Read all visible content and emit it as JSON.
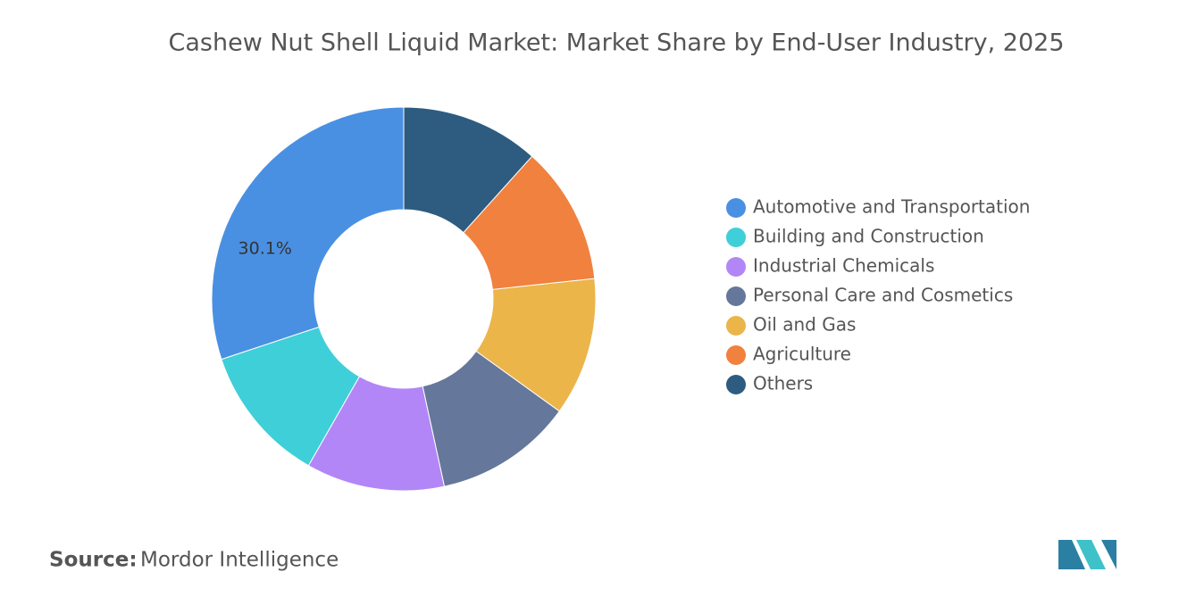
{
  "chart_data": {
    "type": "donut",
    "title": "Cashew Nut Shell Liquid Market: Market Share by End-User Industry, 2025",
    "categories": [
      "Automotive and Transportation",
      "Building and Construction",
      "Industrial Chemicals",
      "Personal Care and Cosmetics",
      "Oil and Gas",
      "Agriculture",
      "Others"
    ],
    "values": [
      30.1,
      11.65,
      11.65,
      11.65,
      11.65,
      11.65,
      11.65
    ],
    "value_labels": [
      "30.1%",
      null,
      null,
      null,
      null,
      null,
      null
    ],
    "colors": [
      "#4a90e2",
      "#3fcfd9",
      "#b286f7",
      "#65779a",
      "#ebb54a",
      "#f0813f",
      "#2d5c80"
    ],
    "source_label": "Source:",
    "source": "Mordor Intelligence"
  }
}
